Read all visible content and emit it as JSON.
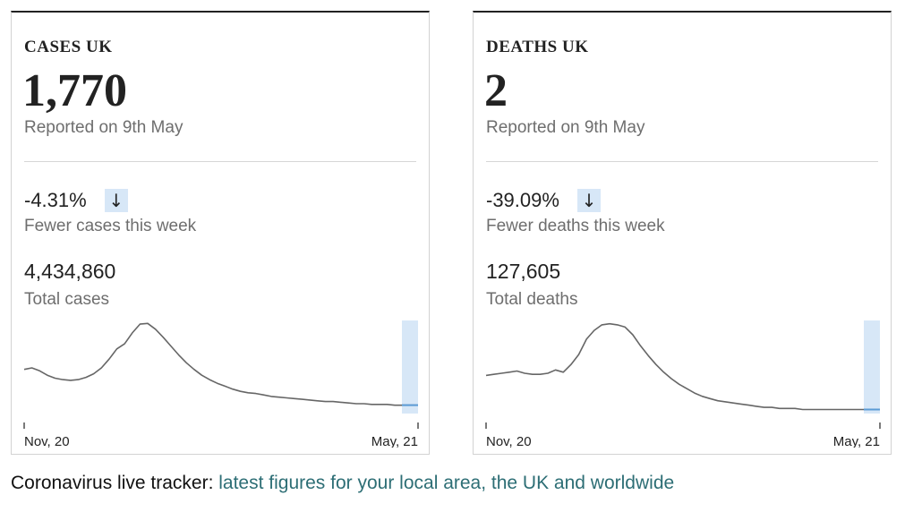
{
  "cards": [
    {
      "title": "CASES UK",
      "big_number": "1,770",
      "reported": "Reported on 9th May",
      "change_value": "-4.31%",
      "change_arrow": "↓",
      "change_label": "Fewer cases this week",
      "total_value": "4,434,860",
      "total_label": "Total cases"
    },
    {
      "title": "DEATHS UK",
      "big_number": "2",
      "reported": "Reported on 9th May",
      "change_value": "-39.09%",
      "change_arrow": "↓",
      "change_label": "Fewer deaths this week",
      "total_value": "127,605",
      "total_label": "Total deaths"
    }
  ],
  "chart_data": [
    {
      "type": "line",
      "x_start_label": "Nov, 20",
      "x_end_label": "May, 21",
      "values": [
        58,
        60,
        56,
        50,
        46,
        44,
        43,
        44,
        47,
        52,
        60,
        72,
        86,
        93,
        108,
        120,
        121,
        113,
        102,
        90,
        78,
        67,
        58,
        50,
        44,
        39,
        35,
        31,
        28,
        26,
        25,
        23,
        21,
        20,
        19,
        18,
        17,
        16,
        15,
        14,
        14,
        13,
        12,
        11,
        11,
        10,
        10,
        10,
        9,
        9,
        9,
        9
      ],
      "ylim": [
        0,
        125
      ],
      "highlight": "last week",
      "line_color": "#666666",
      "highlight_color": "#d7e7f7",
      "highlight_line_color": "#5b9bd5"
    },
    {
      "type": "line",
      "x_start_label": "Nov, 20",
      "x_end_label": "May, 21",
      "values": [
        33,
        34,
        35,
        36,
        37,
        35,
        34,
        34,
        35,
        38,
        36,
        43,
        52,
        66,
        74,
        79,
        80,
        79,
        77,
        70,
        60,
        51,
        43,
        36,
        30,
        25,
        21,
        17,
        14,
        12,
        10,
        9,
        8,
        7,
        6,
        5,
        4,
        4,
        3,
        3,
        3,
        2,
        2,
        2,
        2,
        2,
        2,
        2,
        2,
        2,
        2,
        2
      ],
      "ylim": [
        0,
        83
      ],
      "highlight": "last week",
      "line_color": "#666666",
      "highlight_color": "#d7e7f7",
      "highlight_line_color": "#5b9bd5"
    }
  ],
  "footer": {
    "prefix": "Coronavirus live tracker:",
    "link_text": "latest figures for your local area, the UK and worldwide"
  }
}
